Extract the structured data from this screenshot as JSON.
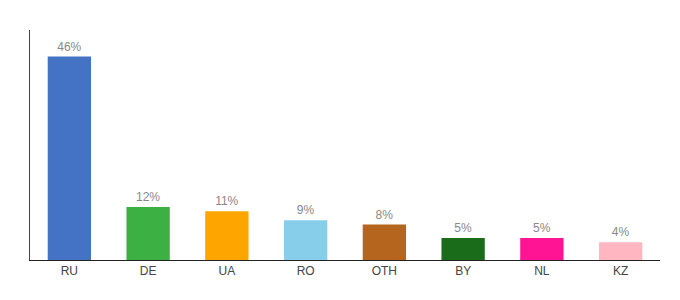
{
  "chart_data": {
    "type": "bar",
    "categories": [
      "RU",
      "DE",
      "UA",
      "RO",
      "OTH",
      "BY",
      "NL",
      "KZ"
    ],
    "values": [
      46,
      12,
      11,
      9,
      8,
      5,
      5,
      4
    ],
    "value_labels": [
      "46%",
      "12%",
      "11%",
      "9%",
      "8%",
      "5%",
      "5%",
      "4%"
    ],
    "colors": [
      "#4472c4",
      "#3cb043",
      "#ffa500",
      "#87ceeb",
      "#b5651d",
      "#1a6b1a",
      "#ff1493",
      "#ffb6c1"
    ],
    "ylim": [
      0,
      52
    ],
    "data_labels": true,
    "tick_labels": "x",
    "grid": false
  }
}
